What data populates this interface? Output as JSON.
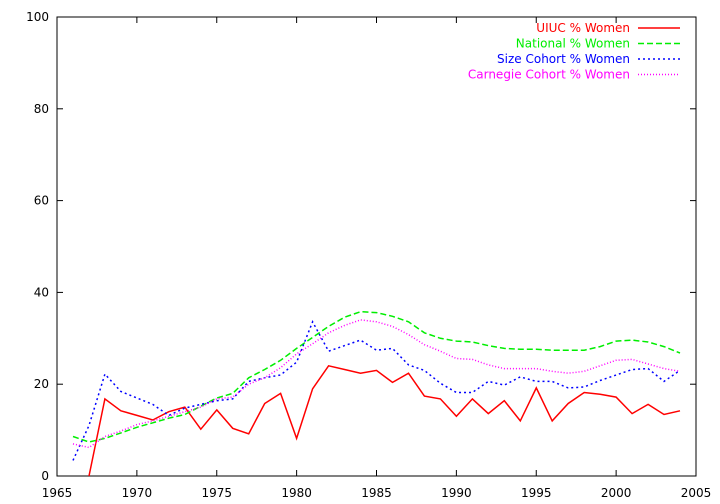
{
  "chart_data": {
    "type": "line",
    "title": "",
    "xlabel": "",
    "ylabel": "",
    "xlim": [
      1965,
      2005
    ],
    "ylim": [
      0,
      100
    ],
    "x_ticks": [
      1965,
      1970,
      1975,
      1980,
      1985,
      1990,
      1995,
      2000,
      2005
    ],
    "y_ticks": [
      0,
      20,
      40,
      60,
      80,
      100
    ],
    "grid": false,
    "legend_position": "top-right",
    "x": [
      1966,
      1967,
      1968,
      1969,
      1970,
      1971,
      1972,
      1973,
      1974,
      1975,
      1976,
      1977,
      1978,
      1979,
      1980,
      1981,
      1982,
      1983,
      1984,
      1985,
      1986,
      1987,
      1988,
      1989,
      1990,
      1991,
      1992,
      1993,
      1994,
      1995,
      1996,
      1997,
      1998,
      1999,
      2000,
      2001,
      2002,
      2003,
      2004
    ],
    "series": [
      {
        "name": "UIUC % Women",
        "color": "#ff0000",
        "dash": "solid",
        "values": [
          null,
          0,
          16.8,
          14.2,
          13.2,
          12.2,
          14.0,
          15.0,
          10.2,
          14.4,
          10.4,
          9.2,
          15.8,
          18.0,
          8.2,
          19.0,
          24.0,
          23.2,
          22.4,
          23.0,
          20.4,
          22.4,
          17.4,
          16.8,
          13.0,
          16.8,
          13.6,
          16.4,
          12.0,
          19.2,
          12.0,
          15.8,
          18.2,
          17.8,
          17.2,
          13.6,
          15.6,
          13.4,
          14.2
        ]
      },
      {
        "name": "National % Women",
        "color": "#00ee00",
        "dash": "dashed",
        "values": [
          8.6,
          7.4,
          8.2,
          9.4,
          10.6,
          11.6,
          12.6,
          13.4,
          15.2,
          17.0,
          18.0,
          21.4,
          23.2,
          25.2,
          27.8,
          30.2,
          32.6,
          34.6,
          35.8,
          35.6,
          34.8,
          33.6,
          31.2,
          30.0,
          29.4,
          29.2,
          28.4,
          27.8,
          27.6,
          27.6,
          27.4,
          27.4,
          27.4,
          28.2,
          29.4,
          29.6,
          29.2,
          28.2,
          26.8
        ]
      },
      {
        "name": "Size Cohort % Women",
        "color": "#0000ff",
        "dash": "dotted",
        "values": [
          3.4,
          11.0,
          22.2,
          18.4,
          17.0,
          15.6,
          13.2,
          14.8,
          15.6,
          16.4,
          16.8,
          20.6,
          21.4,
          22.0,
          24.8,
          33.6,
          27.2,
          28.4,
          29.6,
          27.4,
          27.8,
          24.2,
          23.0,
          20.2,
          18.2,
          18.2,
          20.6,
          19.8,
          21.6,
          20.6,
          20.6,
          19.2,
          19.4,
          20.8,
          22.0,
          23.2,
          23.4,
          20.6,
          23.0
        ]
      },
      {
        "name": "Carnegie Cohort % Women",
        "color": "#ff00ff",
        "dash": "fine-dotted",
        "values": [
          7.0,
          6.2,
          8.6,
          9.8,
          11.2,
          12.0,
          13.0,
          14.0,
          15.0,
          16.8,
          17.2,
          20.0,
          21.4,
          23.6,
          26.6,
          28.8,
          31.2,
          32.8,
          34.0,
          33.6,
          32.6,
          30.8,
          28.6,
          27.2,
          25.6,
          25.4,
          24.2,
          23.4,
          23.4,
          23.4,
          22.8,
          22.4,
          22.8,
          24.0,
          25.2,
          25.4,
          24.4,
          23.4,
          22.8
        ]
      }
    ]
  }
}
